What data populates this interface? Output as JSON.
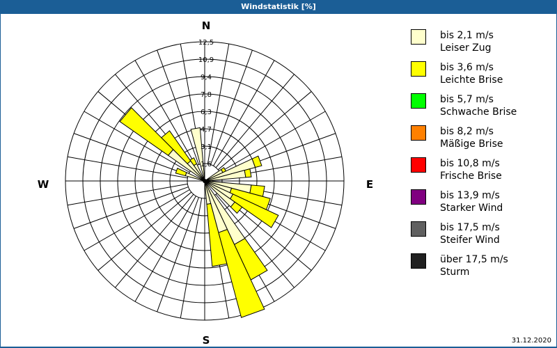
{
  "title": "Windstatistik [%]",
  "date": "31.12.2020",
  "compass": {
    "N": "N",
    "E": "E",
    "S": "S",
    "W": "W"
  },
  "chart_data": {
    "type": "polar-bar",
    "title": "Windstatistik [%]",
    "subtitle": "",
    "radial_ticks": [
      "1,6",
      "3,1",
      "4,7",
      "6,3",
      "7,8",
      "9,4",
      "10,9",
      "12,5"
    ],
    "rlim": [
      0,
      12.5
    ],
    "sector_width_deg": 10,
    "grid": true,
    "legend_position": "right",
    "categories_deg": [
      290,
      310,
      320,
      330,
      350,
      60,
      70,
      80,
      100,
      110,
      120,
      130,
      150,
      160,
      170
    ],
    "series": [
      {
        "name": "bis 2,1 m/s Leiser Zug",
        "color": "#ffffcc",
        "values": [
          1.8,
          4.0,
          2.2,
          1.7,
          4.8,
          1.8,
          4.7,
          3.7,
          4.2,
          2.5,
          2.8,
          3.3,
          6.3,
          4.8,
          2.1
        ]
      },
      {
        "name": "bis 3,6 m/s Leichte Brise",
        "color": "#ffff00",
        "values": [
          0.9,
          5.3,
          3.3,
          0.6,
          0.0,
          0.3,
          0.6,
          0.5,
          1.2,
          3.6,
          4.5,
          0.8,
          3.5,
          7.9,
          5.6
        ]
      },
      {
        "name": "bis 5,7 m/s Schwache Brise",
        "color": "#00ff00",
        "values": [
          0,
          0,
          0,
          0,
          0,
          0,
          0,
          0,
          0,
          0,
          0,
          0,
          0,
          0,
          0
        ]
      },
      {
        "name": "bis 8,2 m/s Mäßige Brise",
        "color": "#ff8000",
        "values": [
          0,
          0,
          0,
          0,
          0,
          0,
          0,
          0,
          0,
          0,
          0,
          0,
          0,
          0,
          0
        ]
      },
      {
        "name": "bis 10,8 m/s Frische Brise",
        "color": "#ff0000",
        "values": [
          0,
          0,
          0,
          0,
          0,
          0,
          0,
          0,
          0,
          0,
          0,
          0,
          0,
          0,
          0
        ]
      },
      {
        "name": "bis 13,9 m/s Starker Wind",
        "color": "#800080",
        "values": [
          0,
          0,
          0,
          0,
          0,
          0,
          0,
          0,
          0,
          0,
          0,
          0,
          0,
          0,
          0
        ]
      },
      {
        "name": "bis 17,5 m/s Steifer Wind",
        "color": "#606060",
        "values": [
          0,
          0,
          0,
          0,
          0,
          0,
          0,
          0,
          0,
          0,
          0,
          0,
          0,
          0,
          0
        ]
      },
      {
        "name": "über 17,5 m/s Sturm",
        "color": "#202020",
        "values": [
          0,
          0,
          0,
          0,
          0,
          0,
          0,
          0,
          0,
          0,
          0,
          0,
          0,
          0,
          0
        ]
      }
    ]
  },
  "legend": [
    {
      "line1": "bis 2,1 m/s",
      "line2": "Leiser Zug",
      "color": "#ffffcc"
    },
    {
      "line1": "bis 3,6 m/s",
      "line2": "Leichte Brise",
      "color": "#ffff00"
    },
    {
      "line1": "bis 5,7 m/s",
      "line2": "Schwache Brise",
      "color": "#00ff00"
    },
    {
      "line1": "bis 8,2 m/s",
      "line2": "Mäßige Brise",
      "color": "#ff8000"
    },
    {
      "line1": "bis 10,8 m/s",
      "line2": "Frische Brise",
      "color": "#ff0000"
    },
    {
      "line1": "bis 13,9 m/s",
      "line2": "Starker Wind",
      "color": "#800080"
    },
    {
      "line1": "bis 17,5 m/s",
      "line2": "Steifer Wind",
      "color": "#606060"
    },
    {
      "line1": "über 17,5 m/s",
      "line2": "Sturm",
      "color": "#202020"
    }
  ]
}
